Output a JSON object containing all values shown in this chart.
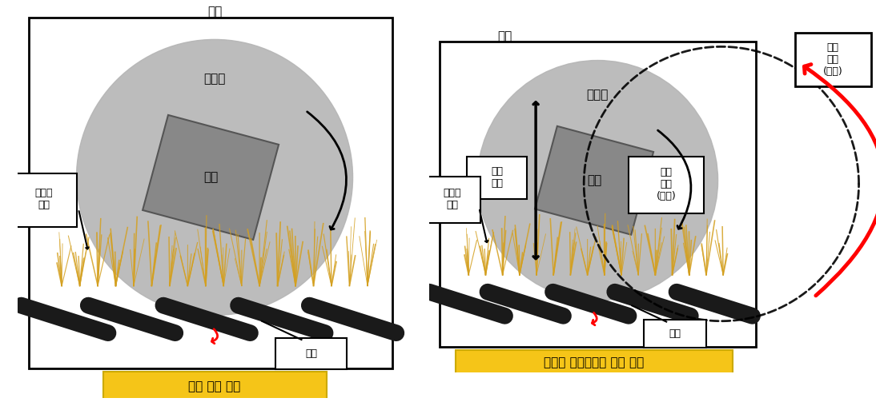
{
  "fig_width": 10.94,
  "fig_height": 5.03,
  "bg_color": "#ffffff",
  "panel1": {
    "title": "기존 에칭 방법",
    "title_bg": "#f5c518",
    "box_label": "상판",
    "circle_color": "#b5b5b5",
    "product_color": "#888888",
    "nozzle_color": "#1a1a1a",
    "spray_color": "#d4a020",
    "label_etchant": "에칭액\n분사",
    "label_nozzle": "노즐"
  },
  "panel2": {
    "title": "기구부 구조변경한 에칭 방법",
    "title_bg": "#f5c518",
    "box_label": "상판",
    "circle_color": "#b5b5b5",
    "product_color": "#888888",
    "nozzle_color": "#1a1a1a",
    "spray_color": "#d4a020",
    "label_etchant": "에칭액\n분사",
    "label_nozzle": "노즐",
    "label_reciprocal": "왕복\n운동",
    "label_rotation_self": "회전\n운동\n(자전)",
    "label_rotation_orbital": "회전\n운동\n(공전)"
  }
}
